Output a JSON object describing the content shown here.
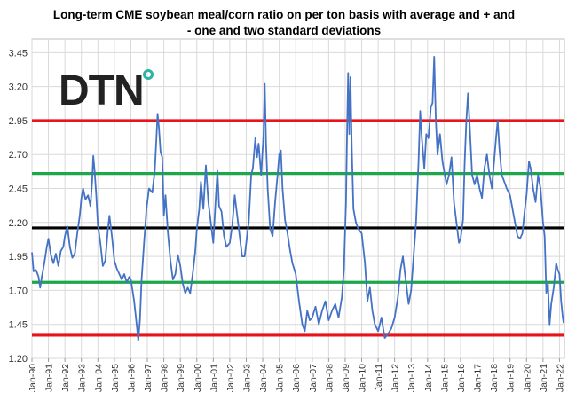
{
  "chart_data": {
    "type": "line",
    "title_line1": "Long-term CME soybean meal/corn ratio on per ton basis with average and + and",
    "title_line2": "- one and two standard deviations",
    "xlabel": "",
    "ylabel": "",
    "ylim": [
      1.2,
      3.55
    ],
    "y_ticks": [
      "1.20",
      "1.45",
      "1.70",
      "1.95",
      "2.20",
      "2.45",
      "2.70",
      "2.95",
      "3.20",
      "3.45"
    ],
    "x_ticks": [
      "Jan-90",
      "Jan-91",
      "Jan-92",
      "Jan-93",
      "Jan-94",
      "Jan-95",
      "Jan-96",
      "Jan-97",
      "Jan-98",
      "Jan-99",
      "Jan-00",
      "Jan-01",
      "Jan-02",
      "Jan-03",
      "Jan-04",
      "Jan-05",
      "Jan-06",
      "Jan-07",
      "Jan-08",
      "Jan-09",
      "Jan-10",
      "Jan-11",
      "Jan-12",
      "Jan-13",
      "Jan-14",
      "Jan-15",
      "Jan-16",
      "Jan-17",
      "Jan-18",
      "Jan-19",
      "Jan-20",
      "Jan-21",
      "Jan-22"
    ],
    "x_start": "Jan-90",
    "x_end": "Jan-22",
    "grid": true,
    "logo": "DTN",
    "reference_lines": [
      {
        "value": 2.95,
        "color": "#e8141b"
      },
      {
        "value": 2.56,
        "color": "#1ea64b"
      },
      {
        "value": 2.16,
        "color": "#000000"
      },
      {
        "value": 1.76,
        "color": "#1ea64b"
      },
      {
        "value": 1.37,
        "color": "#e8141b"
      }
    ],
    "series": [
      {
        "color": "#4472c4",
        "points": [
          [
            1990.0,
            1.98
          ],
          [
            1990.1,
            1.84
          ],
          [
            1990.25,
            1.85
          ],
          [
            1990.4,
            1.8
          ],
          [
            1990.5,
            1.72
          ],
          [
            1990.6,
            1.8
          ],
          [
            1990.75,
            1.9
          ],
          [
            1990.9,
            2.02
          ],
          [
            1991.0,
            2.08
          ],
          [
            1991.15,
            1.96
          ],
          [
            1991.3,
            1.9
          ],
          [
            1991.45,
            1.97
          ],
          [
            1991.6,
            1.88
          ],
          [
            1991.75,
            1.99
          ],
          [
            1991.9,
            2.02
          ],
          [
            1992.0,
            2.1
          ],
          [
            1992.15,
            2.17
          ],
          [
            1992.3,
            2.02
          ],
          [
            1992.45,
            1.94
          ],
          [
            1992.6,
            1.97
          ],
          [
            1992.75,
            2.12
          ],
          [
            1992.9,
            2.25
          ],
          [
            1993.0,
            2.38
          ],
          [
            1993.1,
            2.45
          ],
          [
            1993.25,
            2.37
          ],
          [
            1993.4,
            2.4
          ],
          [
            1993.55,
            2.32
          ],
          [
            1993.65,
            2.5
          ],
          [
            1993.72,
            2.69
          ],
          [
            1993.8,
            2.58
          ],
          [
            1993.9,
            2.4
          ],
          [
            1994.0,
            2.18
          ],
          [
            1994.15,
            2.05
          ],
          [
            1994.3,
            1.88
          ],
          [
            1994.45,
            1.92
          ],
          [
            1994.6,
            2.14
          ],
          [
            1994.7,
            2.25
          ],
          [
            1994.85,
            2.1
          ],
          [
            1995.0,
            1.92
          ],
          [
            1995.15,
            1.86
          ],
          [
            1995.3,
            1.82
          ],
          [
            1995.45,
            1.78
          ],
          [
            1995.6,
            1.82
          ],
          [
            1995.75,
            1.76
          ],
          [
            1995.9,
            1.8
          ],
          [
            1996.0,
            1.78
          ],
          [
            1996.2,
            1.62
          ],
          [
            1996.35,
            1.45
          ],
          [
            1996.45,
            1.33
          ],
          [
            1996.55,
            1.48
          ],
          [
            1996.65,
            1.78
          ],
          [
            1996.8,
            2.05
          ],
          [
            1996.95,
            2.3
          ],
          [
            1997.1,
            2.45
          ],
          [
            1997.3,
            2.42
          ],
          [
            1997.45,
            2.58
          ],
          [
            1997.55,
            2.82
          ],
          [
            1997.62,
            3.0
          ],
          [
            1997.7,
            2.9
          ],
          [
            1997.8,
            2.72
          ],
          [
            1997.9,
            2.68
          ],
          [
            1998.0,
            2.25
          ],
          [
            1998.1,
            2.4
          ],
          [
            1998.25,
            2.12
          ],
          [
            1998.4,
            1.92
          ],
          [
            1998.55,
            1.78
          ],
          [
            1998.7,
            1.82
          ],
          [
            1998.85,
            1.96
          ],
          [
            1999.0,
            1.88
          ],
          [
            1999.15,
            1.75
          ],
          [
            1999.3,
            1.68
          ],
          [
            1999.45,
            1.72
          ],
          [
            1999.6,
            1.68
          ],
          [
            1999.75,
            1.82
          ],
          [
            1999.9,
            1.98
          ],
          [
            2000.0,
            2.15
          ],
          [
            2000.15,
            2.3
          ],
          [
            2000.25,
            2.5
          ],
          [
            2000.4,
            2.3
          ],
          [
            2000.55,
            2.62
          ],
          [
            2000.7,
            2.35
          ],
          [
            2000.85,
            2.2
          ],
          [
            2001.0,
            2.05
          ],
          [
            2001.15,
            2.38
          ],
          [
            2001.25,
            2.58
          ],
          [
            2001.35,
            2.32
          ],
          [
            2001.5,
            2.28
          ],
          [
            2001.65,
            2.1
          ],
          [
            2001.8,
            2.02
          ],
          [
            2002.0,
            2.05
          ],
          [
            2002.15,
            2.18
          ],
          [
            2002.3,
            2.4
          ],
          [
            2002.45,
            2.25
          ],
          [
            2002.6,
            2.1
          ],
          [
            2002.75,
            1.95
          ],
          [
            2002.9,
            1.95
          ],
          [
            2003.0,
            2.05
          ],
          [
            2003.15,
            2.2
          ],
          [
            2003.3,
            2.55
          ],
          [
            2003.4,
            2.6
          ],
          [
            2003.55,
            2.82
          ],
          [
            2003.65,
            2.68
          ],
          [
            2003.75,
            2.78
          ],
          [
            2003.9,
            2.55
          ],
          [
            2004.05,
            2.85
          ],
          [
            2004.12,
            3.22
          ],
          [
            2004.2,
            2.78
          ],
          [
            2004.3,
            2.45
          ],
          [
            2004.45,
            2.15
          ],
          [
            2004.6,
            2.1
          ],
          [
            2004.75,
            2.35
          ],
          [
            2004.9,
            2.55
          ],
          [
            2005.0,
            2.7
          ],
          [
            2005.1,
            2.73
          ],
          [
            2005.2,
            2.45
          ],
          [
            2005.35,
            2.22
          ],
          [
            2005.5,
            2.12
          ],
          [
            2005.65,
            2.0
          ],
          [
            2005.8,
            1.9
          ],
          [
            2006.0,
            1.82
          ],
          [
            2006.2,
            1.62
          ],
          [
            2006.4,
            1.45
          ],
          [
            2006.55,
            1.4
          ],
          [
            2006.7,
            1.55
          ],
          [
            2006.85,
            1.48
          ],
          [
            2007.0,
            1.5
          ],
          [
            2007.2,
            1.58
          ],
          [
            2007.4,
            1.45
          ],
          [
            2007.6,
            1.55
          ],
          [
            2007.8,
            1.62
          ],
          [
            2008.0,
            1.48
          ],
          [
            2008.2,
            1.55
          ],
          [
            2008.4,
            1.6
          ],
          [
            2008.6,
            1.5
          ],
          [
            2008.8,
            1.65
          ],
          [
            2008.92,
            1.85
          ],
          [
            2009.05,
            2.35
          ],
          [
            2009.12,
            2.9
          ],
          [
            2009.18,
            3.3
          ],
          [
            2009.25,
            2.85
          ],
          [
            2009.32,
            3.27
          ],
          [
            2009.4,
            2.75
          ],
          [
            2009.5,
            2.3
          ],
          [
            2009.65,
            2.2
          ],
          [
            2009.8,
            2.15
          ],
          [
            2010.0,
            2.12
          ],
          [
            2010.2,
            1.9
          ],
          [
            2010.35,
            1.62
          ],
          [
            2010.5,
            1.72
          ],
          [
            2010.65,
            1.55
          ],
          [
            2010.8,
            1.45
          ],
          [
            2011.0,
            1.4
          ],
          [
            2011.2,
            1.5
          ],
          [
            2011.4,
            1.35
          ],
          [
            2011.6,
            1.38
          ],
          [
            2011.8,
            1.42
          ],
          [
            2012.0,
            1.5
          ],
          [
            2012.2,
            1.65
          ],
          [
            2012.35,
            1.85
          ],
          [
            2012.5,
            1.95
          ],
          [
            2012.7,
            1.75
          ],
          [
            2012.85,
            1.6
          ],
          [
            2013.0,
            1.7
          ],
          [
            2013.15,
            1.95
          ],
          [
            2013.3,
            2.2
          ],
          [
            2013.45,
            2.65
          ],
          [
            2013.55,
            3.02
          ],
          [
            2013.65,
            2.82
          ],
          [
            2013.8,
            2.6
          ],
          [
            2013.92,
            2.85
          ],
          [
            2014.05,
            2.82
          ],
          [
            2014.2,
            3.05
          ],
          [
            2014.3,
            3.08
          ],
          [
            2014.4,
            3.42
          ],
          [
            2014.5,
            2.95
          ],
          [
            2014.6,
            2.7
          ],
          [
            2014.75,
            2.85
          ],
          [
            2014.9,
            2.65
          ],
          [
            2015.0,
            2.58
          ],
          [
            2015.15,
            2.48
          ],
          [
            2015.3,
            2.55
          ],
          [
            2015.45,
            2.68
          ],
          [
            2015.6,
            2.35
          ],
          [
            2015.75,
            2.2
          ],
          [
            2015.9,
            2.05
          ],
          [
            2016.0,
            2.08
          ],
          [
            2016.15,
            2.22
          ],
          [
            2016.25,
            2.65
          ],
          [
            2016.35,
            2.95
          ],
          [
            2016.45,
            3.15
          ],
          [
            2016.55,
            2.92
          ],
          [
            2016.7,
            2.55
          ],
          [
            2016.85,
            2.48
          ],
          [
            2017.0,
            2.55
          ],
          [
            2017.15,
            2.45
          ],
          [
            2017.3,
            2.38
          ],
          [
            2017.45,
            2.6
          ],
          [
            2017.6,
            2.7
          ],
          [
            2017.75,
            2.55
          ],
          [
            2017.9,
            2.45
          ],
          [
            2018.0,
            2.6
          ],
          [
            2018.15,
            2.82
          ],
          [
            2018.25,
            2.95
          ],
          [
            2018.35,
            2.75
          ],
          [
            2018.5,
            2.55
          ],
          [
            2018.65,
            2.5
          ],
          [
            2018.8,
            2.45
          ],
          [
            2019.0,
            2.4
          ],
          [
            2019.15,
            2.3
          ],
          [
            2019.3,
            2.2
          ],
          [
            2019.45,
            2.1
          ],
          [
            2019.6,
            2.08
          ],
          [
            2019.75,
            2.12
          ],
          [
            2019.9,
            2.3
          ],
          [
            2020.0,
            2.4
          ],
          [
            2020.15,
            2.65
          ],
          [
            2020.25,
            2.6
          ],
          [
            2020.4,
            2.45
          ],
          [
            2020.55,
            2.35
          ],
          [
            2020.7,
            2.55
          ],
          [
            2020.85,
            2.45
          ],
          [
            2021.0,
            2.2
          ],
          [
            2021.1,
            2.1
          ],
          [
            2021.2,
            1.68
          ],
          [
            2021.3,
            1.75
          ],
          [
            2021.4,
            1.45
          ],
          [
            2021.5,
            1.6
          ],
          [
            2021.65,
            1.72
          ],
          [
            2021.8,
            1.9
          ],
          [
            2021.9,
            1.85
          ],
          [
            2022.0,
            1.82
          ],
          [
            2022.1,
            1.62
          ],
          [
            2022.2,
            1.5
          ],
          [
            2022.25,
            1.46
          ]
        ]
      }
    ]
  }
}
